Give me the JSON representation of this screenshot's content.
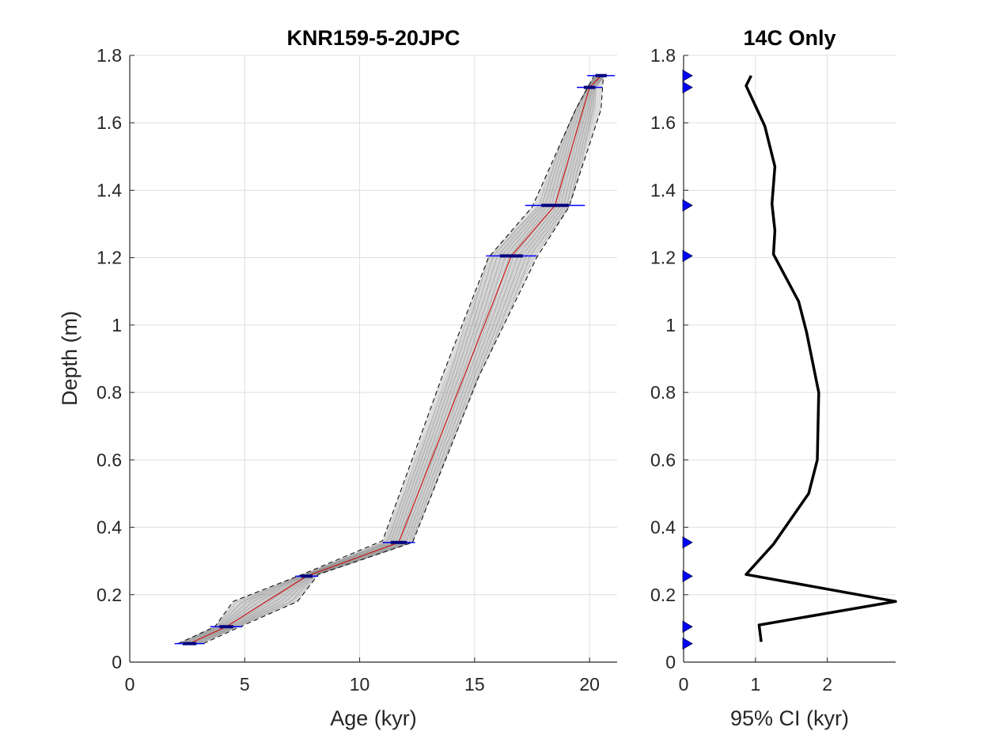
{
  "chart_data": [
    {
      "type": "line",
      "title": "KNR159-5-20JPC",
      "xlabel": "Age (kyr)",
      "ylabel": "Depth (m)",
      "xlim": [
        0,
        21.2
      ],
      "ylim": [
        0,
        1.8
      ],
      "xticks": [
        "0",
        "5",
        "10",
        "15",
        "20"
      ],
      "yticks": [
        "0",
        "0.2",
        "0.4",
        "0.6",
        "0.8",
        "1",
        "1.2",
        "1.4",
        "1.6",
        "1.8"
      ],
      "grid": true,
      "colors": {
        "median": "#d40000",
        "ci_bounds": "#000000",
        "ensemble": "#9a9a9a",
        "dates": "#0000ff"
      },
      "series": [
        {
          "style": "solid-red",
          "x": [
            2.6,
            4.2,
            7.7,
            11.7,
            16.6,
            18.5,
            20.0,
            20.5
          ],
          "y": [
            0.055,
            0.105,
            0.255,
            0.355,
            1.205,
            1.355,
            1.705,
            1.74
          ]
        },
        {
          "style": "dashed-black",
          "x": [
            2.1,
            3.7,
            4.5,
            7.5,
            11.0,
            13.6,
            15.6,
            17.5,
            19.4,
            20.2
          ],
          "y": [
            0.055,
            0.105,
            0.18,
            0.26,
            0.36,
            0.85,
            1.2,
            1.35,
            1.64,
            1.74
          ]
        },
        {
          "style": "dashed-black",
          "x": [
            3.2,
            4.8,
            7.3,
            8.2,
            12.3,
            15.2,
            17.7,
            19.1,
            20.5,
            20.6
          ],
          "y": [
            0.055,
            0.105,
            0.18,
            0.26,
            0.355,
            0.85,
            1.2,
            1.35,
            1.64,
            1.74
          ]
        }
      ],
      "dates": [
        {
          "age": 2.6,
          "depth": 0.055,
          "err2": 0.65,
          "err1": 0.3
        },
        {
          "age": 4.2,
          "depth": 0.105,
          "err2": 0.7,
          "err1": 0.3
        },
        {
          "age": 7.7,
          "depth": 0.255,
          "err2": 0.5,
          "err1": 0.25
        },
        {
          "age": 11.7,
          "depth": 0.355,
          "err2": 0.7,
          "err1": 0.35
        },
        {
          "age": 16.6,
          "depth": 1.205,
          "err2": 1.1,
          "err1": 0.5
        },
        {
          "age": 18.5,
          "depth": 1.355,
          "err2": 1.3,
          "err1": 0.6
        },
        {
          "age": 20.0,
          "depth": 1.705,
          "err2": 0.55,
          "err1": 0.25
        },
        {
          "age": 20.5,
          "depth": 1.74,
          "err2": 0.6,
          "err1": 0.25
        }
      ]
    },
    {
      "type": "line",
      "title": "14C Only",
      "xlabel": "95% CI (kyr)",
      "ylabel": "",
      "xlim": [
        0,
        2.95
      ],
      "ylim": [
        0,
        1.8
      ],
      "xticks": [
        "0",
        "1",
        "2"
      ],
      "yticks": [
        "0",
        "0.2",
        "0.4",
        "0.6",
        "0.8",
        "1",
        "1.2",
        "1.4",
        "1.6",
        "1.8"
      ],
      "grid": true,
      "colors": {
        "line": "#000000",
        "markers": "#0000ff"
      },
      "series": [
        {
          "x": [
            1.08,
            1.05,
            2.95,
            0.87,
            1.25,
            1.74,
            1.86,
            1.88,
            1.71,
            1.6,
            1.25,
            1.27,
            1.23,
            1.27,
            1.13,
            0.87,
            0.94
          ],
          "y": [
            0.06,
            0.11,
            0.18,
            0.26,
            0.35,
            0.5,
            0.6,
            0.8,
            0.98,
            1.07,
            1.21,
            1.28,
            1.36,
            1.47,
            1.59,
            1.71,
            1.74
          ]
        }
      ],
      "date_depths": [
        0.055,
        0.105,
        0.255,
        0.355,
        1.205,
        1.355,
        1.705,
        1.74
      ]
    }
  ]
}
